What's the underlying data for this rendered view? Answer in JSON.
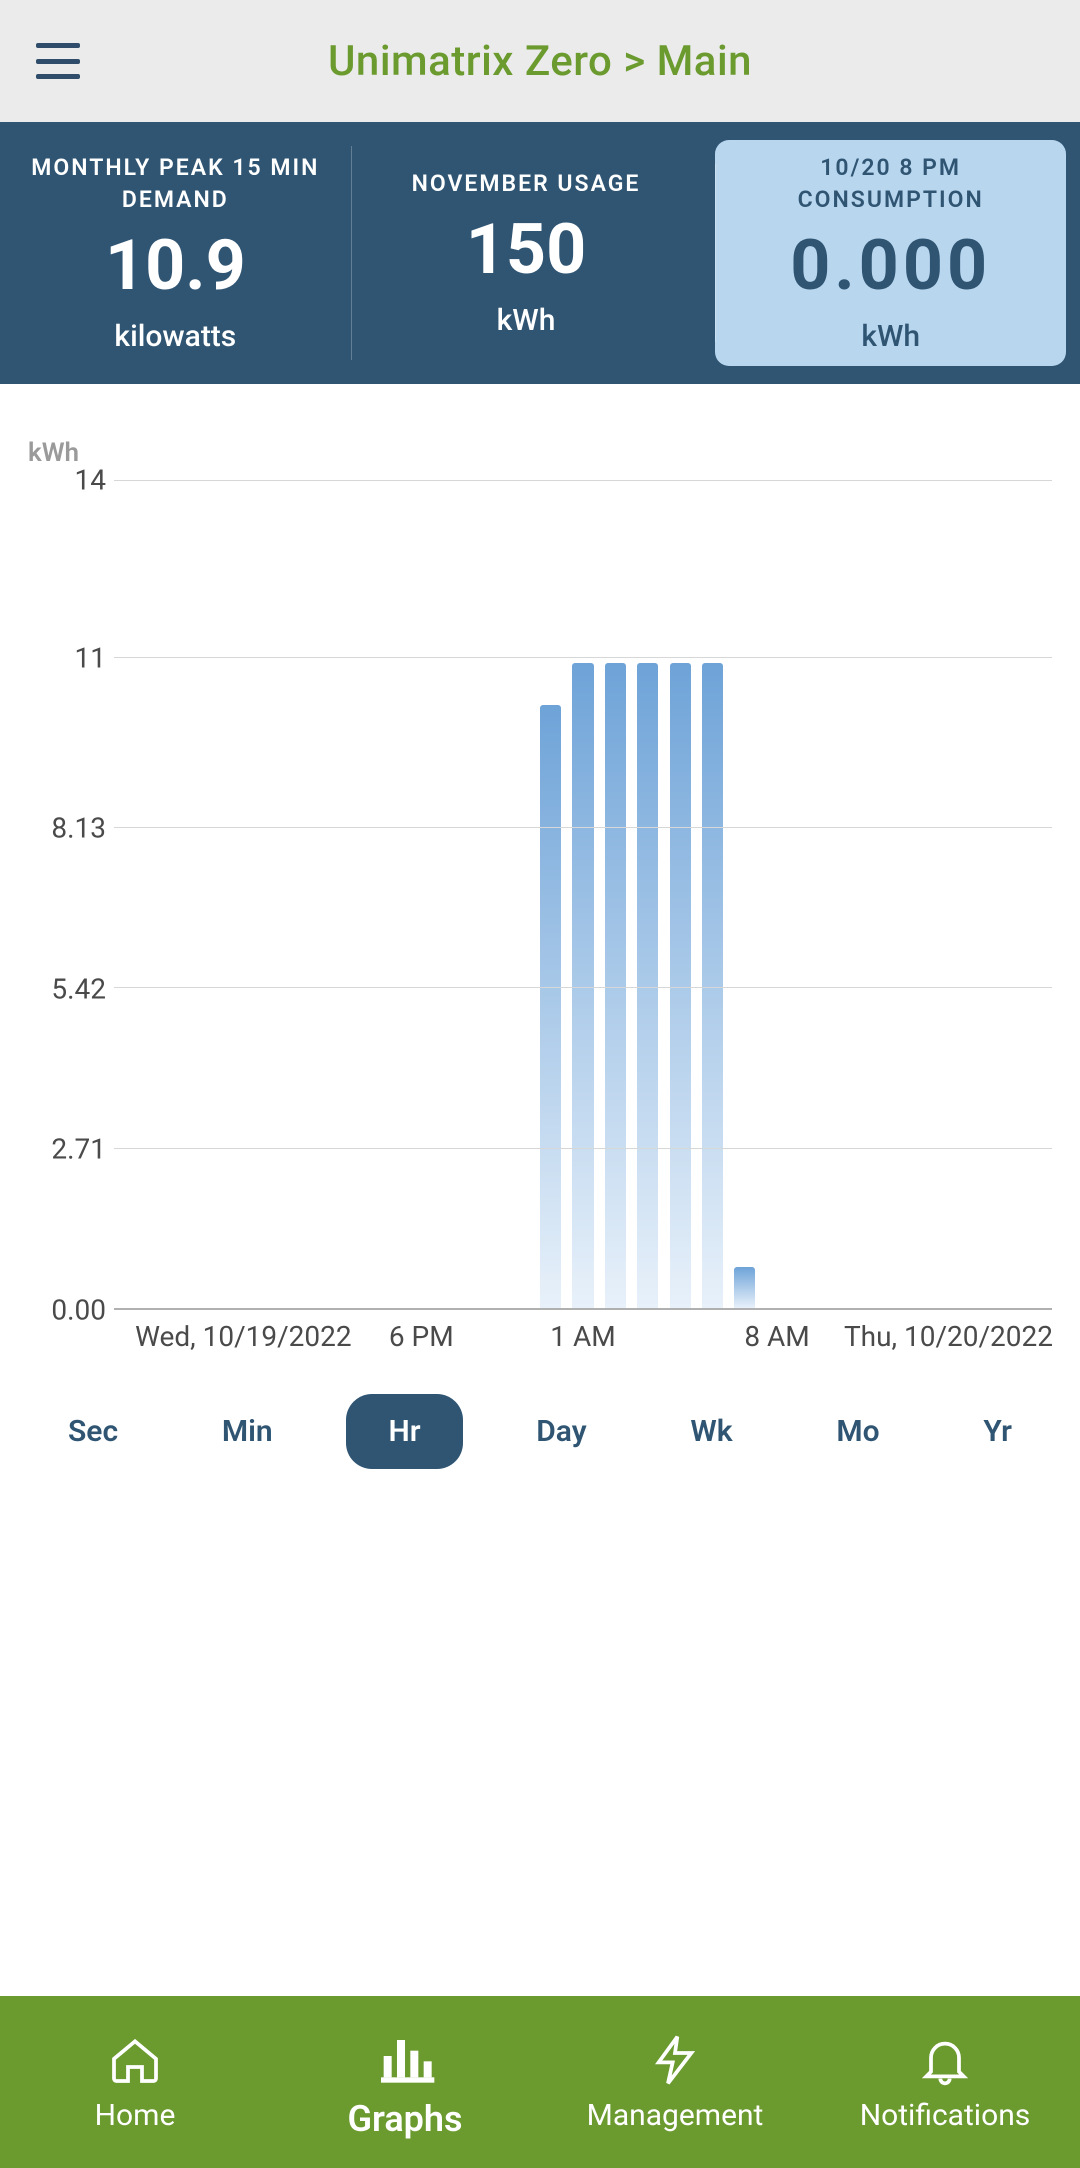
{
  "header": {
    "title": "Unimatrix Zero > Main"
  },
  "stats": [
    {
      "label": "MONTHLY PEAK 15 MIN DEMAND",
      "value": "10.9",
      "unit": "kilowatts",
      "selected": false
    },
    {
      "label": "NOVEMBER USAGE",
      "value": "150",
      "unit": "kWh",
      "selected": false
    },
    {
      "label": "10/20 8 PM CONSUMPTION",
      "value": "0.000",
      "unit": "kWh",
      "selected": true
    }
  ],
  "chart": {
    "type": "bar",
    "axis_title": "kWh",
    "ymax": 14,
    "yticks": [
      14,
      11,
      8.13,
      5.42,
      2.71,
      0.0
    ],
    "ytick_labels": [
      "14",
      "11",
      "8.13",
      "5.42",
      "2.71",
      "0.00"
    ],
    "grid_color": "#d7d7d7",
    "axis_color": "#b0b0b0",
    "bar_color_top": "#6ea3d8",
    "bar_color_bottom": "#e8f1fa",
    "background_color": "#ffffff",
    "bar_gap_ratio": 0.35,
    "n_slots": 29,
    "bars": [
      {
        "slot": 13,
        "value": 10.2
      },
      {
        "slot": 14,
        "value": 10.9
      },
      {
        "slot": 15,
        "value": 10.9
      },
      {
        "slot": 16,
        "value": 10.9
      },
      {
        "slot": 17,
        "value": 10.9
      },
      {
        "slot": 18,
        "value": 10.9
      },
      {
        "slot": 19,
        "value": 0.7
      }
    ],
    "xticks": [
      {
        "slot": 3.5,
        "label": "Wed, 10/19/2022"
      },
      {
        "slot": 9,
        "label": "6 PM"
      },
      {
        "slot": 14,
        "label": "1 AM"
      },
      {
        "slot": 20,
        "label": "8 AM"
      },
      {
        "slot": 25.3,
        "label": "Thu, 10/20/2022"
      }
    ]
  },
  "ranges": {
    "options": [
      "Sec",
      "Min",
      "Hr",
      "Day",
      "Wk",
      "Mo",
      "Yr"
    ],
    "active": "Hr"
  },
  "nav": {
    "items": [
      {
        "id": "home",
        "label": "Home"
      },
      {
        "id": "graphs",
        "label": "Graphs"
      },
      {
        "id": "management",
        "label": "Management"
      },
      {
        "id": "notifications",
        "label": "Notifications"
      }
    ],
    "active": "graphs"
  },
  "colors": {
    "topbar_bg": "#ebebeb",
    "title_color": "#6b9a2f",
    "strip_bg": "#2f5573",
    "selected_stat_bg": "#b9d6ef",
    "range_text": "#2f5573",
    "nav_bg": "#6b9a2f"
  }
}
